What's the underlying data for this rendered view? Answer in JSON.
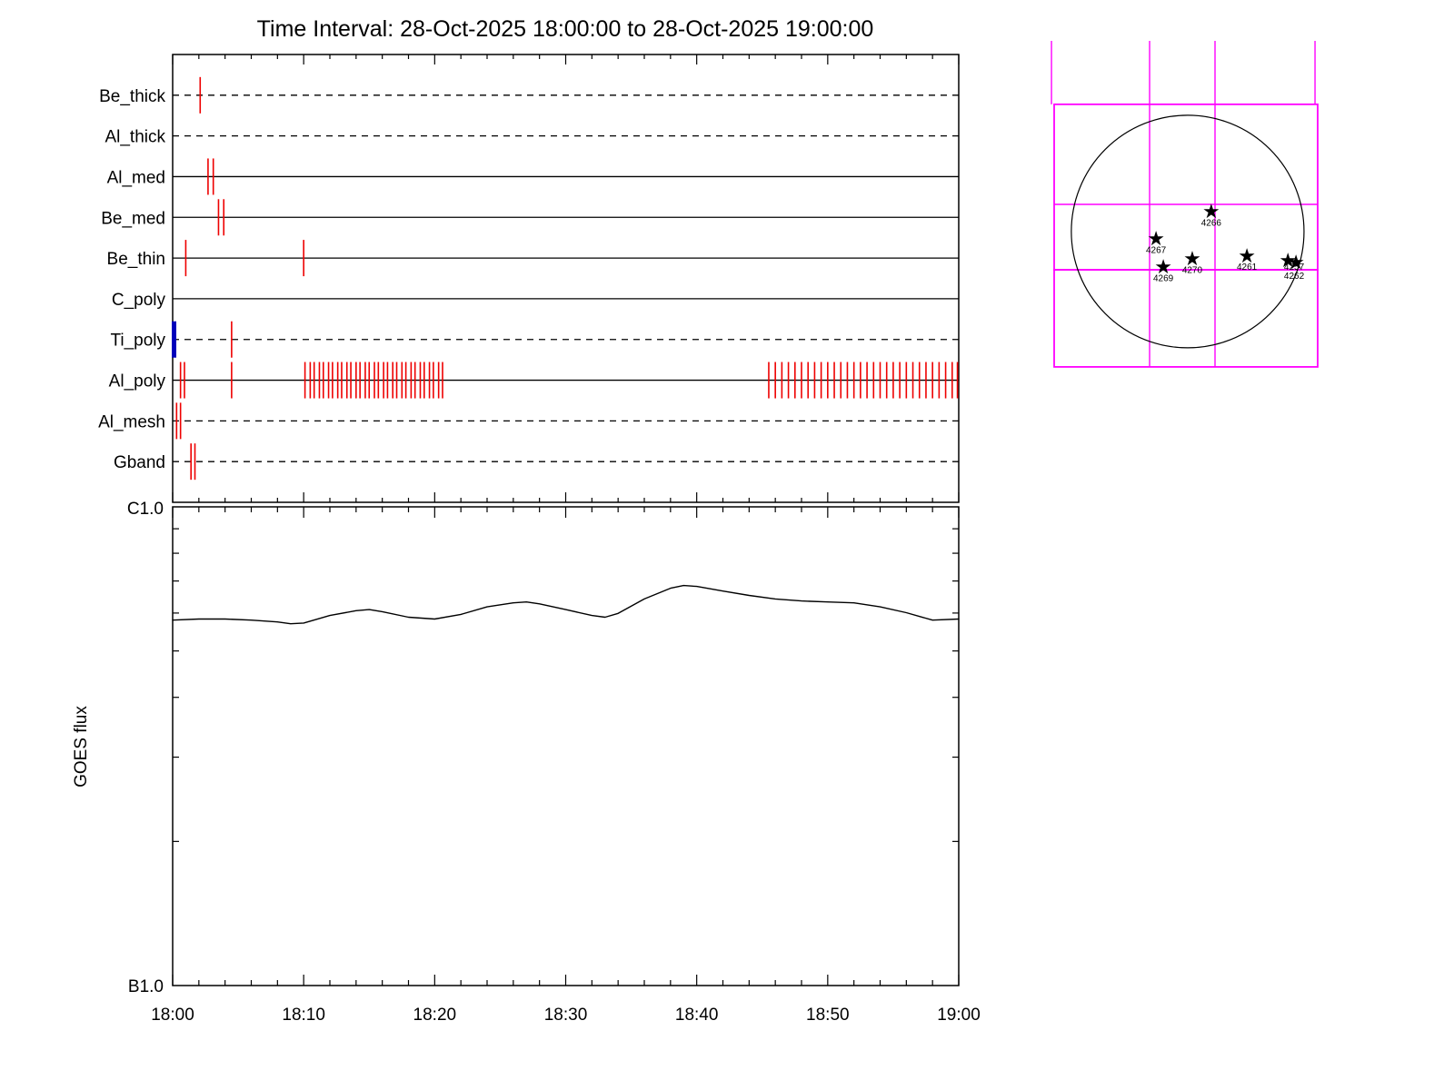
{
  "title": "Time Interval: 28-Oct-2025 18:00:00 to 28-Oct-2025 19:00:00",
  "colors": {
    "exposure_tick": "#ee0000",
    "blue_marker": "#0000bb",
    "fov_grid": "#ff00ff",
    "curve": "#000000"
  },
  "chart_data": [
    {
      "type": "timeline",
      "title": "XRT filter exposure timeline",
      "x_range_minutes": [
        0,
        60
      ],
      "x_start_label": "18:00",
      "x_end_label": "19:00",
      "channels": [
        {
          "label": "Be_thick",
          "line_style": "dashed",
          "exposures": [
            2.1
          ]
        },
        {
          "label": "Al_thick",
          "line_style": "dashed",
          "exposures": []
        },
        {
          "label": "Al_med",
          "line_style": "solid",
          "exposures": [
            2.7,
            3.1
          ]
        },
        {
          "label": "Be_med",
          "line_style": "solid",
          "exposures": [
            3.5,
            3.9
          ]
        },
        {
          "label": "Be_thin",
          "line_style": "solid",
          "exposures": [
            1.0,
            10.0
          ]
        },
        {
          "label": "C_poly",
          "line_style": "solid",
          "exposures": []
        },
        {
          "label": "Ti_poly",
          "line_style": "dashed",
          "exposures": [
            4.5
          ],
          "blue_marker_at": 0.0
        },
        {
          "label": "Al_poly",
          "line_style": "solid",
          "exposures": [
            0.6,
            0.9,
            4.5,
            10.1,
            10.5,
            10.8,
            11.2,
            11.5,
            11.9,
            12.2,
            12.6,
            12.9,
            13.3,
            13.6,
            14.0,
            14.3,
            14.7,
            15.0,
            15.4,
            15.7,
            16.1,
            16.4,
            16.8,
            17.1,
            17.5,
            17.8,
            18.2,
            18.5,
            18.9,
            19.2,
            19.6,
            19.9,
            20.3,
            20.6,
            45.5,
            46.0,
            46.5,
            47.0,
            47.5,
            48.0,
            48.5,
            49.0,
            49.5,
            50.0,
            50.5,
            51.0,
            51.5,
            52.0,
            52.5,
            53.0,
            53.5,
            54.0,
            54.5,
            55.0,
            55.5,
            56.0,
            56.5,
            57.0,
            57.5,
            58.0,
            58.5,
            59.0,
            59.5,
            59.9
          ]
        },
        {
          "label": "Al_mesh",
          "line_style": "dashed",
          "exposures": [
            0.3,
            0.6
          ]
        },
        {
          "label": "Gband",
          "line_style": "dashed",
          "exposures": [
            1.4,
            1.7
          ]
        }
      ]
    },
    {
      "type": "line",
      "title": "GOES flux",
      "ylabel": "GOES flux",
      "y_scale": "log",
      "y_axis_labels": {
        "top": "C1.0",
        "bottom": "B1.0"
      },
      "x_tick_labels": [
        "18:00",
        "18:10",
        "18:20",
        "18:30",
        "18:40",
        "18:50",
        "19:00"
      ],
      "x_minutes": [
        0,
        2,
        4,
        6,
        8,
        9,
        10,
        12,
        14,
        15,
        16,
        18,
        20,
        22,
        24,
        26,
        27,
        28,
        30,
        32,
        33,
        34,
        36,
        38,
        39,
        40,
        42,
        44,
        46,
        48,
        50,
        52,
        54,
        56,
        58,
        60
      ],
      "flux_b_units": [
        5.8,
        5.83,
        5.83,
        5.8,
        5.75,
        5.7,
        5.72,
        5.93,
        6.07,
        6.1,
        6.04,
        5.88,
        5.83,
        5.96,
        6.18,
        6.3,
        6.33,
        6.27,
        6.1,
        5.93,
        5.88,
        5.99,
        6.42,
        6.76,
        6.85,
        6.82,
        6.67,
        6.53,
        6.42,
        6.36,
        6.33,
        6.3,
        6.18,
        6.01,
        5.8,
        5.83
      ]
    },
    {
      "type": "solar_map",
      "title": "Solar disk with active regions",
      "solar_limb": {
        "cx": 0.515,
        "cy": 0.583,
        "r": 0.434
      },
      "fov_rects": [
        {
          "x": 0.017,
          "y": 0.194,
          "w": 0.983,
          "h": 0.506
        },
        {
          "x": 0.017,
          "y": 0.7,
          "w": 0.983,
          "h": 0.297
        }
      ],
      "grid_lines": [
        {
          "x1": 0.373,
          "y1": 0.0,
          "x2": 0.373,
          "y2": 0.997
        },
        {
          "x1": 0.617,
          "y1": 0.0,
          "x2": 0.617,
          "y2": 0.997
        },
        {
          "x1": 0.017,
          "y1": 0.5,
          "x2": 1.0,
          "y2": 0.5
        },
        {
          "x1": 0.007,
          "y1": 0.0,
          "x2": 0.007,
          "y2": 0.194
        },
        {
          "x1": 0.99,
          "y1": 0.0,
          "x2": 0.99,
          "y2": 0.194
        }
      ],
      "active_regions": [
        {
          "label": "4266",
          "star": [
            0.603,
            0.519
          ],
          "label_pos": [
            0.603,
            0.565
          ]
        },
        {
          "label": "4267",
          "star": [
            0.397,
            0.603
          ],
          "label_pos": [
            0.397,
            0.648
          ]
        },
        {
          "label": "4269",
          "star": [
            0.424,
            0.689
          ],
          "label_pos": [
            0.424,
            0.735
          ]
        },
        {
          "label": "4270",
          "star": [
            0.532,
            0.664
          ],
          "label_pos": [
            0.532,
            0.71
          ]
        },
        {
          "label": "4261",
          "star": [
            0.736,
            0.656
          ],
          "label_pos": [
            0.736,
            0.7
          ]
        },
        {
          "label": "4257",
          "star": [
            0.889,
            0.669
          ],
          "label_pos": [
            0.912,
            0.7
          ]
        },
        {
          "label": "4262",
          "star": [
            0.919,
            0.675
          ],
          "label_pos": [
            0.912,
            0.728
          ]
        }
      ]
    }
  ]
}
